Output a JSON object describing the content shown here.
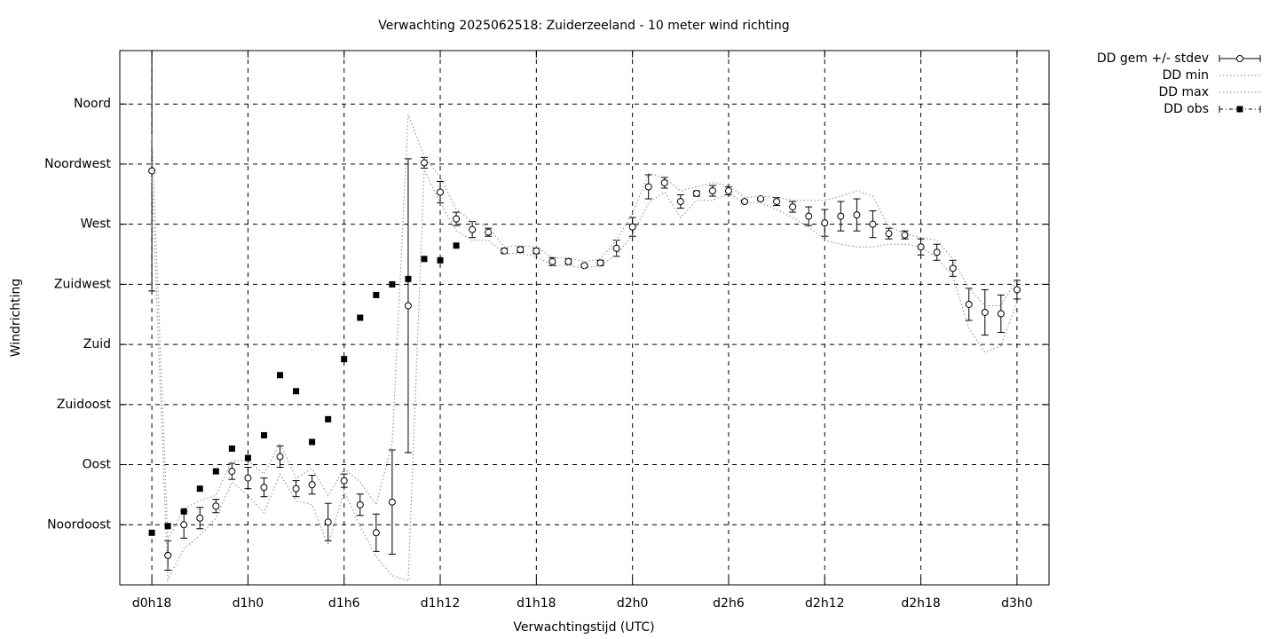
{
  "chart_data": {
    "type": "errorbar-line",
    "title": "Verwachting 2025062518: Zuiderzeeland - 10 meter wind richting",
    "xlabel": "Verwachtingstijd (UTC)",
    "ylabel": "Windrichting",
    "x": [
      18,
      19,
      20,
      21,
      22,
      23,
      24,
      25,
      26,
      27,
      28,
      29,
      30,
      31,
      32,
      33,
      34,
      35,
      36,
      37,
      38,
      39,
      40,
      41,
      42,
      43,
      44,
      45,
      46,
      47,
      48,
      49,
      50,
      51,
      52,
      53,
      54,
      55,
      56,
      57,
      58,
      59,
      60,
      61,
      62,
      63,
      64,
      65,
      66,
      67,
      68,
      69,
      70,
      71,
      72
    ],
    "xlim": [
      16,
      74
    ],
    "xticks": [
      {
        "value": 18,
        "label": "d0h18"
      },
      {
        "value": 24,
        "label": "d1h0"
      },
      {
        "value": 30,
        "label": "d1h6"
      },
      {
        "value": 36,
        "label": "d1h12"
      },
      {
        "value": 42,
        "label": "d1h18"
      },
      {
        "value": 48,
        "label": "d2h0"
      },
      {
        "value": 54,
        "label": "d2h6"
      },
      {
        "value": 60,
        "label": "d2h12"
      },
      {
        "value": 66,
        "label": "d2h18"
      },
      {
        "value": 72,
        "label": "d3h0"
      }
    ],
    "ylim": [
      0,
      400
    ],
    "yticks": [
      {
        "value": 45,
        "label": "Noordoost"
      },
      {
        "value": 90,
        "label": "Oost"
      },
      {
        "value": 135,
        "label": "Zuidoost"
      },
      {
        "value": 180,
        "label": "Zuid"
      },
      {
        "value": 225,
        "label": "Zuidwest"
      },
      {
        "value": 270,
        "label": "West"
      },
      {
        "value": 315,
        "label": "Noordwest"
      },
      {
        "value": 360,
        "label": "Noord"
      }
    ],
    "grid": true,
    "legend": "outside-top-right",
    "series": [
      {
        "name": "DD gem +/- stdev",
        "color": "#000000",
        "style": "errorbar",
        "values": [
          310,
          22,
          45,
          50,
          59,
          85,
          80,
          73,
          96,
          72,
          75,
          47,
          78,
          60,
          39,
          62,
          209,
          316,
          294,
          274,
          266,
          264,
          250,
          251,
          250,
          242,
          242,
          239,
          241,
          252,
          268,
          298,
          301,
          287,
          293,
          295,
          295,
          287,
          289,
          287,
          283,
          276,
          271,
          276,
          277,
          270,
          263,
          262,
          253,
          249,
          237,
          210,
          204,
          203,
          221
        ],
        "errors": [
          90,
          11,
          10,
          8,
          5,
          6,
          8,
          7,
          8,
          6,
          7,
          14,
          5,
          8,
          14,
          39,
          110,
          4,
          8,
          5,
          6,
          3,
          2,
          2,
          2,
          3,
          2,
          1,
          2,
          6,
          7,
          9,
          4,
          5,
          2,
          4,
          3,
          1,
          1,
          3,
          4,
          7,
          10,
          11,
          12,
          10,
          4,
          3,
          6,
          6,
          6,
          12,
          17,
          14,
          7
        ]
      },
      {
        "name": "DD min",
        "color": "#999999",
        "style": "dotted",
        "values": [
          305,
          4,
          27,
          37,
          50,
          77,
          67,
          54,
          83,
          63,
          60,
          30,
          70,
          44,
          21,
          7,
          3,
          311,
          286,
          265,
          258,
          258,
          248,
          248,
          246,
          239,
          239,
          237,
          239,
          247,
          262,
          286,
          294,
          275,
          288,
          288,
          293,
          286,
          286,
          281,
          275,
          268,
          258,
          255,
          253,
          253,
          255,
          255,
          253,
          245,
          231,
          192,
          174,
          179,
          212
        ]
      },
      {
        "name": "DD max",
        "color": "#999999",
        "style": "dotted",
        "values": [
          337,
          34,
          57,
          63,
          67,
          93,
          93,
          83,
          106,
          80,
          87,
          67,
          87,
          77,
          60,
          106,
          352,
          321,
          305,
          281,
          272,
          268,
          253,
          254,
          253,
          245,
          245,
          242,
          244,
          258,
          278,
          308,
          305,
          295,
          298,
          301,
          299,
          290,
          291,
          290,
          288,
          288,
          288,
          291,
          295,
          291,
          268,
          263,
          260,
          258,
          244,
          222,
          209,
          209,
          229
        ]
      },
      {
        "name": "DD obs",
        "color": "#000000",
        "style": "points",
        "values": [
          39,
          44,
          55,
          72,
          85,
          102,
          95,
          112,
          157,
          145,
          107,
          124,
          169,
          200,
          217,
          225,
          229,
          244,
          243,
          254,
          null,
          null,
          null,
          null,
          null,
          null,
          null,
          null,
          null,
          null,
          null,
          null,
          null,
          null,
          null,
          null,
          null,
          null,
          null,
          null,
          null,
          null,
          null,
          null,
          null,
          null,
          null,
          null,
          null,
          null,
          null,
          null,
          null,
          null,
          null
        ]
      }
    ]
  }
}
